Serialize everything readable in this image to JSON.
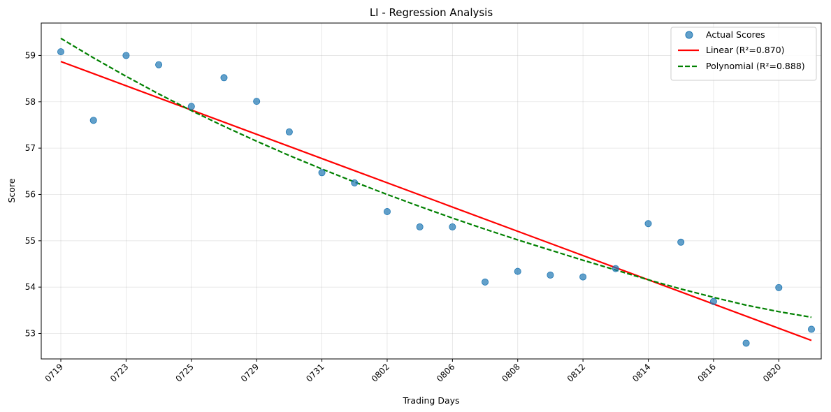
{
  "chart_data": {
    "type": "scatter",
    "title": "LI - Regression Analysis",
    "xlabel": "Trading Days",
    "ylabel": "Score",
    "xtick_labels": [
      "0719",
      "0723",
      "0725",
      "0729",
      "0731",
      "0802",
      "0806",
      "0808",
      "0812",
      "0814",
      "0816",
      "0820"
    ],
    "xlim": [
      -0.6,
      23.3
    ],
    "ylim": [
      52.45,
      59.7
    ],
    "yticks": [
      53,
      54,
      55,
      56,
      57,
      58,
      59
    ],
    "grid": true,
    "legend_position": "top-right",
    "series": [
      {
        "name": "Actual Scores",
        "kind": "scatter",
        "color": "#1f77b4",
        "values": [
          59.08,
          57.6,
          59.0,
          58.8,
          57.9,
          58.52,
          58.01,
          57.35,
          56.47,
          56.25,
          55.63,
          55.3,
          55.3,
          54.11,
          54.34,
          54.26,
          54.22,
          54.4,
          55.37,
          54.97,
          53.69,
          52.79,
          53.99,
          53.09
        ]
      },
      {
        "name": "Linear (R²=0.870)",
        "kind": "line",
        "color": "#ff0000",
        "dash": "solid",
        "values": [
          58.87,
          52.85
        ]
      },
      {
        "name": "Polynomial (R²=0.888)",
        "kind": "line",
        "color": "#008000",
        "dash": "dashed",
        "values": [
          59.37,
          58.95,
          58.55,
          58.17,
          57.81,
          57.47,
          57.15,
          56.84,
          56.55,
          56.27,
          56.0,
          55.74,
          55.49,
          55.25,
          55.02,
          54.8,
          54.58,
          54.37,
          54.16,
          53.96,
          53.78,
          53.61,
          53.47,
          53.35
        ]
      }
    ]
  }
}
